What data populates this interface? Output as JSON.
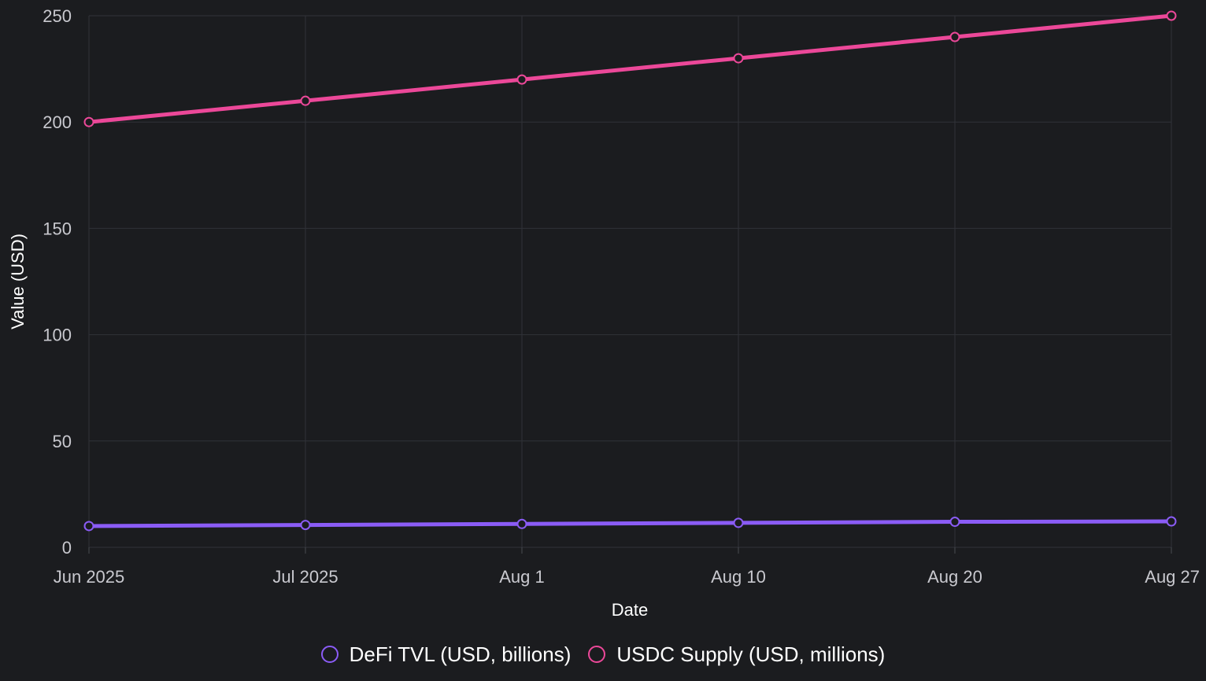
{
  "chart_data": {
    "type": "line",
    "title": "",
    "xlabel": "Date",
    "ylabel": "Value (USD)",
    "categories": [
      "2025-06-01",
      "2025-07-01",
      "2025-08-01",
      "2025-08-10",
      "2025-08-20",
      "2025-08-27"
    ],
    "tick_labels": [
      "Jun 2025",
      "Jul 2025",
      "Aug 1",
      "Aug 10",
      "Aug 20",
      "Aug 27"
    ],
    "ylim": [
      0,
      250
    ],
    "yticks": [
      0,
      50,
      100,
      150,
      200,
      250
    ],
    "grid": true,
    "legend_position": "bottom",
    "series": [
      {
        "name": "DeFi TVL (USD, billions)",
        "color": "#8b5cf6",
        "values": [
          10,
          10.5,
          11,
          11.5,
          12,
          12.2
        ]
      },
      {
        "name": "USDC Supply (USD, millions)",
        "color": "#ec4899",
        "values": [
          200,
          210,
          220,
          230,
          240,
          250
        ]
      }
    ]
  }
}
